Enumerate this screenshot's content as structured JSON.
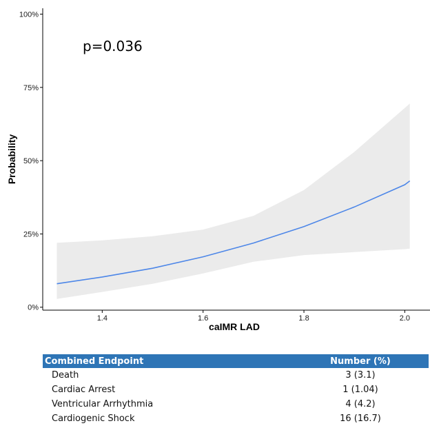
{
  "chart_data": {
    "type": "line",
    "title": "",
    "xlabel": "caIMR LAD",
    "ylabel": "Probability",
    "xlim": [
      1.282,
      2.05
    ],
    "ylim": [
      -0.01,
      1.02
    ],
    "x_ticks": [
      1.4,
      1.6,
      1.8,
      2.0
    ],
    "x_tick_labels": [
      "1.4",
      "1.6",
      "1.8",
      "2.0"
    ],
    "y_ticks": [
      0,
      0.25,
      0.5,
      0.75,
      1.0
    ],
    "y_tick_labels": [
      "0%",
      "25%",
      "50%",
      "75%",
      "100%"
    ],
    "grid": false,
    "annotation": "p=0.036",
    "series": [
      {
        "x": [
          1.31,
          1.4,
          1.5,
          1.6,
          1.7,
          1.8,
          1.9,
          2.0,
          2.01
        ],
        "y": [
          0.08,
          0.103,
          0.133,
          0.172,
          0.219,
          0.275,
          0.342,
          0.418,
          0.431
        ],
        "lower": [
          0.028,
          0.052,
          0.08,
          0.115,
          0.155,
          0.178,
          0.188,
          0.198,
          0.2
        ],
        "upper": [
          0.22,
          0.228,
          0.242,
          0.265,
          0.312,
          0.4,
          0.53,
          0.68,
          0.695
        ],
        "line_color": "#4c86e8",
        "band_color": "#ebebeb"
      }
    ]
  },
  "table": {
    "headers": [
      "Combined Endpoint",
      "Number (%)"
    ],
    "rows": [
      {
        "label": "Death",
        "value": "3 (3.1)"
      },
      {
        "label": "Cardiac Arrest",
        "value": "1 (1.04)"
      },
      {
        "label": "Ventricular Arrhythmia",
        "value": "4 (4.2)"
      },
      {
        "label": "Cardiogenic Shock",
        "value": "16 (16.7)"
      }
    ],
    "header_color": "#2e75b6"
  }
}
